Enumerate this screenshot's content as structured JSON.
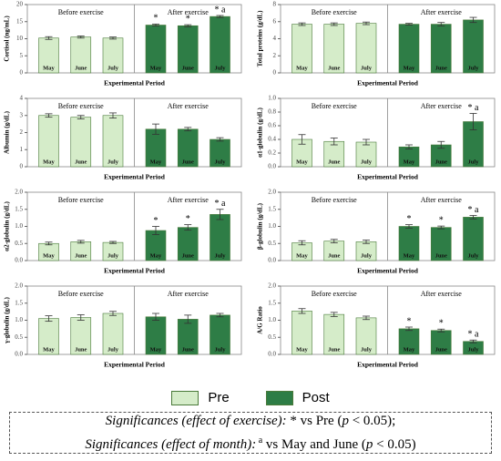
{
  "legend": [
    {
      "name": "Pre",
      "color": "#d5ecc9"
    },
    {
      "name": "Post",
      "color": "#2e7d46"
    }
  ],
  "chart_data": [
    {
      "type": "bar",
      "y_label": "Cortisol (ng/mL)",
      "x_label": "Experimental Period",
      "group_labels": [
        "Before exercise",
        "After exercise"
      ],
      "categories": [
        "May",
        "June",
        "July"
      ],
      "ylim": [
        0,
        20
      ],
      "yticks": [
        0,
        5,
        10,
        15,
        20
      ],
      "series": [
        {
          "values": [
            10.2,
            10.5,
            10.2
          ],
          "errors": [
            0.4,
            0.3,
            0.3
          ]
        },
        {
          "values": [
            14.0,
            13.8,
            16.5
          ],
          "errors": [
            0.3,
            0.3,
            0.3
          ],
          "annotations": [
            "*",
            "*",
            "* a"
          ]
        }
      ]
    },
    {
      "type": "bar",
      "y_label": "Total proteins (g/dL)",
      "x_label": "Experimental Period",
      "group_labels": [
        "Before exercise",
        "After exercise"
      ],
      "categories": [
        "May",
        "June",
        "July"
      ],
      "ylim": [
        0,
        8
      ],
      "yticks": [
        0,
        2,
        4,
        6,
        8
      ],
      "series": [
        {
          "values": [
            5.7,
            5.7,
            5.8
          ],
          "errors": [
            0.15,
            0.15,
            0.15
          ]
        },
        {
          "values": [
            5.7,
            5.7,
            6.2
          ],
          "errors": [
            0.1,
            0.2,
            0.3
          ]
        }
      ]
    },
    {
      "type": "bar",
      "y_label": "Albumin (g/dL)",
      "x_label": "Experimental Period",
      "group_labels": [
        "Before exercise",
        "After exercise"
      ],
      "categories": [
        "May",
        "June",
        "July"
      ],
      "ylim": [
        0,
        4
      ],
      "yticks": [
        0,
        1,
        2,
        3,
        4
      ],
      "series": [
        {
          "values": [
            3.0,
            2.9,
            3.0
          ],
          "errors": [
            0.1,
            0.1,
            0.15
          ]
        },
        {
          "values": [
            2.2,
            2.2,
            1.6
          ],
          "errors": [
            0.3,
            0.1,
            0.1
          ]
        }
      ],
      "annotations_series": 1
    },
    {
      "type": "bar",
      "y_label": "α1-globulin (g/dL)",
      "x_label": "Experimental Period",
      "group_labels": [
        "Before exercise",
        "After exercise"
      ],
      "categories": [
        "May",
        "June",
        "July"
      ],
      "ylim": [
        0,
        1.0
      ],
      "yticks": [
        {
          "value": 0,
          "label": "0.0"
        },
        0.2,
        0.4,
        0.6,
        0.8,
        {
          "value": 1.0,
          "label": "1.0"
        }
      ],
      "series": [
        {
          "values": [
            0.4,
            0.37,
            0.36
          ],
          "errors": [
            0.07,
            0.05,
            0.04
          ]
        },
        {
          "values": [
            0.29,
            0.32,
            0.66
          ],
          "errors": [
            0.03,
            0.05,
            0.12
          ],
          "annotations": [
            null,
            null,
            "* a"
          ]
        }
      ]
    },
    {
      "type": "bar",
      "y_label": "α2-globulin (g/dL)",
      "x_label": "Experimental Period",
      "group_labels": [
        "Before exercise",
        "After exercise"
      ],
      "categories": [
        "May",
        "June",
        "July"
      ],
      "ylim": [
        0,
        2.0
      ],
      "yticks": [
        {
          "value": 0,
          "label": "0.0"
        },
        0.5,
        {
          "value": 1.0,
          "label": "1.0"
        },
        1.5,
        {
          "value": 2.0,
          "label": "2.0"
        }
      ],
      "series": [
        {
          "values": [
            0.5,
            0.55,
            0.53
          ],
          "errors": [
            0.04,
            0.04,
            0.03
          ]
        },
        {
          "values": [
            0.88,
            0.97,
            1.35
          ],
          "errors": [
            0.12,
            0.08,
            0.15
          ],
          "annotations": [
            "*",
            "*",
            "* a"
          ]
        }
      ]
    },
    {
      "type": "bar",
      "y_label": "β-globulin (g/dL)",
      "x_label": "Experimental Period",
      "group_labels": [
        "Before exercise",
        "After exercise"
      ],
      "categories": [
        "May",
        "June",
        "July"
      ],
      "ylim": [
        0,
        2.0
      ],
      "yticks": [
        {
          "value": 0,
          "label": "0.0"
        },
        0.5,
        {
          "value": 1.0,
          "label": "1.0"
        },
        1.5,
        {
          "value": 2.0,
          "label": "2.0"
        }
      ],
      "series": [
        {
          "values": [
            0.52,
            0.57,
            0.55
          ],
          "errors": [
            0.06,
            0.05,
            0.05
          ]
        },
        {
          "values": [
            1.0,
            0.97,
            1.27
          ],
          "errors": [
            0.05,
            0.04,
            0.05
          ],
          "annotations": [
            "*",
            "*",
            "* a"
          ]
        }
      ]
    },
    {
      "type": "bar",
      "y_label": "γ-globulin (g/dL)",
      "x_label": "Experimental Period",
      "group_labels": [
        "Before exercise",
        "After exercise"
      ],
      "categories": [
        "May",
        "June",
        "July"
      ],
      "ylim": [
        0,
        2.0
      ],
      "yticks": [
        {
          "value": 0,
          "label": "0.0"
        },
        0.5,
        {
          "value": 1.0,
          "label": "1.0"
        },
        1.5,
        {
          "value": 2.0,
          "label": "2.0"
        }
      ],
      "series": [
        {
          "values": [
            1.05,
            1.08,
            1.2
          ],
          "errors": [
            0.08,
            0.08,
            0.06
          ]
        },
        {
          "values": [
            1.1,
            1.03,
            1.15
          ],
          "errors": [
            0.1,
            0.12,
            0.05
          ]
        }
      ]
    },
    {
      "type": "bar",
      "y_label": "A/G Ratio",
      "x_label": "Experimental Period",
      "group_labels": [
        "Before exercise",
        "After exercise"
      ],
      "categories": [
        "May",
        "June",
        "July"
      ],
      "ylim": [
        0,
        2.0
      ],
      "yticks": [
        {
          "value": 0,
          "label": "0.0"
        },
        0.5,
        {
          "value": 1.0,
          "label": "1.0"
        },
        1.5,
        {
          "value": 2.0,
          "label": "2.0"
        }
      ],
      "series": [
        {
          "values": [
            1.27,
            1.17,
            1.07
          ],
          "errors": [
            0.07,
            0.06,
            0.05
          ]
        },
        {
          "values": [
            0.75,
            0.7,
            0.38
          ],
          "errors": [
            0.05,
            0.04,
            0.04
          ],
          "annotations": [
            "*",
            "*",
            "* a"
          ]
        }
      ]
    }
  ],
  "notes": [
    [
      {
        "text": "Significances (effect of exercise):",
        "style": "italic"
      },
      {
        "text": " * vs Pre (",
        "style": "normal"
      },
      {
        "text": "p",
        "style": "italic"
      },
      {
        "text": " < 0.05);",
        "style": "normal"
      }
    ],
    [
      {
        "text": "Significances (effect of month):",
        "style": "italic"
      },
      {
        "text": " a",
        "style": "sup"
      },
      {
        "text": " vs  May and June (",
        "style": "normal"
      },
      {
        "text": "p",
        "style": "italic"
      },
      {
        "text": " < 0.05)",
        "style": "normal"
      }
    ]
  ]
}
